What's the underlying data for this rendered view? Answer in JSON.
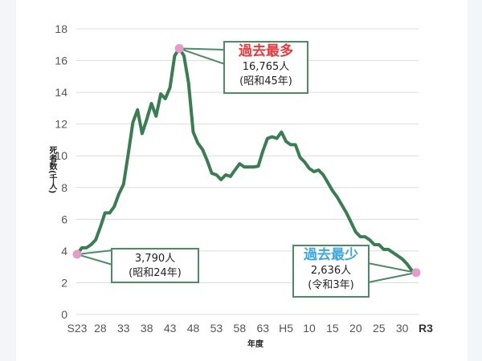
{
  "chart_data": {
    "type": "line",
    "title": "",
    "xlabel": "年度",
    "ylabel": "死者数(千人)",
    "ylim": [
      0,
      18
    ],
    "yticks": [
      0,
      2,
      4,
      6,
      8,
      10,
      12,
      14,
      16,
      18
    ],
    "grid": true,
    "xtick_labels": [
      "S23",
      "28",
      "33",
      "38",
      "43",
      "48",
      "53",
      "58",
      "63",
      "H5",
      "10",
      "15",
      "20",
      "25",
      "30",
      "R3"
    ],
    "line_color": "#3a7d52",
    "marker_color": "#e79bc8",
    "x": [
      1948,
      1949,
      1950,
      1951,
      1952,
      1953,
      1954,
      1955,
      1956,
      1957,
      1958,
      1959,
      1960,
      1961,
      1962,
      1963,
      1964,
      1965,
      1966,
      1967,
      1968,
      1969,
      1970,
      1971,
      1972,
      1973,
      1974,
      1975,
      1976,
      1977,
      1978,
      1979,
      1980,
      1981,
      1982,
      1983,
      1984,
      1985,
      1986,
      1987,
      1988,
      1989,
      1990,
      1991,
      1992,
      1993,
      1994,
      1995,
      1996,
      1997,
      1998,
      1999,
      2000,
      2001,
      2002,
      2003,
      2004,
      2005,
      2006,
      2007,
      2008,
      2009,
      2010,
      2011,
      2012,
      2013,
      2014,
      2015,
      2016,
      2017,
      2018,
      2019,
      2020,
      2021
    ],
    "series": [
      {
        "name": "死者数(千人)",
        "values": [
          3.79,
          4.2,
          4.2,
          4.4,
          4.7,
          5.5,
          6.4,
          6.4,
          6.8,
          7.6,
          8.2,
          10.1,
          12.1,
          12.9,
          11.4,
          12.3,
          13.3,
          12.5,
          13.9,
          13.6,
          14.3,
          16.3,
          16.765,
          16.3,
          14.6,
          11.5,
          10.8,
          10.4,
          9.7,
          8.9,
          8.8,
          8.5,
          8.8,
          8.7,
          9.1,
          9.5,
          9.3,
          9.3,
          9.3,
          9.35,
          10.3,
          11.1,
          11.2,
          11.1,
          11.5,
          10.9,
          10.7,
          10.7,
          9.9,
          9.6,
          9.2,
          9.0,
          9.1,
          8.8,
          8.3,
          7.8,
          7.4,
          6.9,
          6.4,
          5.8,
          5.2,
          4.9,
          4.9,
          4.7,
          4.4,
          4.4,
          4.1,
          4.1,
          3.9,
          3.7,
          3.5,
          3.2,
          2.8,
          2.636
        ]
      }
    ],
    "annotations": [
      {
        "title": "",
        "value": "3,790人",
        "era": "(昭和24年)",
        "x": 1948,
        "y": 3.79
      },
      {
        "title": "過去最多",
        "title_color": "#e8383d",
        "value": "16,765人",
        "era": "(昭和45年)",
        "x": 1970,
        "y": 16.765
      },
      {
        "title": "過去最少",
        "title_color": "#3ca6e0",
        "value": "2,636人",
        "era": "(令和3年)",
        "x": 2021,
        "y": 2.636
      }
    ]
  },
  "labels": {
    "ylabel": "死者数(千人)",
    "xlabel": "年度",
    "min_callout": {
      "head": "過去最少",
      "value": "2,636人",
      "era": "(令和3年)"
    },
    "max_callout": {
      "head": "過去最多",
      "value": "16,765人",
      "era": "(昭和45年)"
    },
    "start_callout": {
      "value": "3,790人",
      "era": "(昭和24年)"
    }
  }
}
